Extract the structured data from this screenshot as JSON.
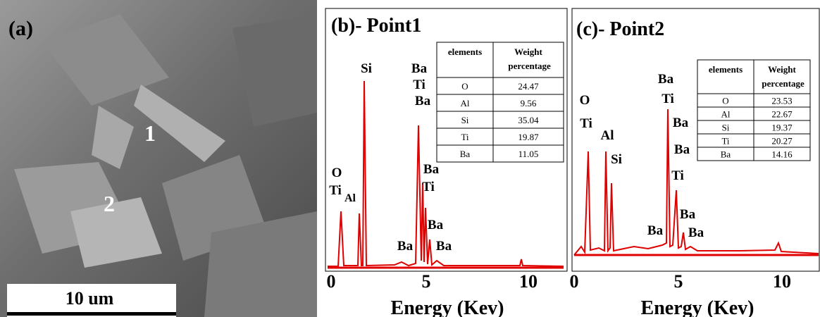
{
  "panel_a": {
    "label": "(a)",
    "scale_bar": "10 um",
    "markers": [
      "1",
      "2"
    ]
  },
  "panel_b": {
    "title": "(b)- Point1",
    "peak_labels": [
      "Si",
      "Ba",
      "Ti",
      "Ba",
      "O",
      "Ti",
      "Al",
      "Ba",
      "Ti",
      "Ba",
      "Ba",
      "Ba"
    ],
    "table": {
      "header": [
        "elements",
        "Weight percentage"
      ],
      "rows": [
        [
          "O",
          "24.47"
        ],
        [
          "Al",
          "9.56"
        ],
        [
          "Si",
          "35.04"
        ],
        [
          "Ti",
          "19.87"
        ],
        [
          "Ba",
          "11.05"
        ]
      ]
    },
    "xticks": [
      "0",
      "5",
      "10"
    ],
    "xlabel": "Energy (Kev)"
  },
  "panel_c": {
    "title": "(c)- Point2",
    "peak_labels": [
      "O",
      "Ti",
      "Al",
      "Si",
      "Ba",
      "Ti",
      "Ba",
      "Ba",
      "Ti",
      "Ba",
      "Ba",
      "Ba"
    ],
    "table": {
      "header": [
        "elements",
        "Weight percentage"
      ],
      "rows": [
        [
          "O",
          "23.53"
        ],
        [
          "Al",
          "22.67"
        ],
        [
          "Si",
          "19.37"
        ],
        [
          "Ti",
          "20.27"
        ],
        [
          "Ba",
          "14.16"
        ]
      ]
    },
    "xticks": [
      "0",
      "5",
      "10"
    ],
    "xlabel": "Energy (Kev)"
  }
}
